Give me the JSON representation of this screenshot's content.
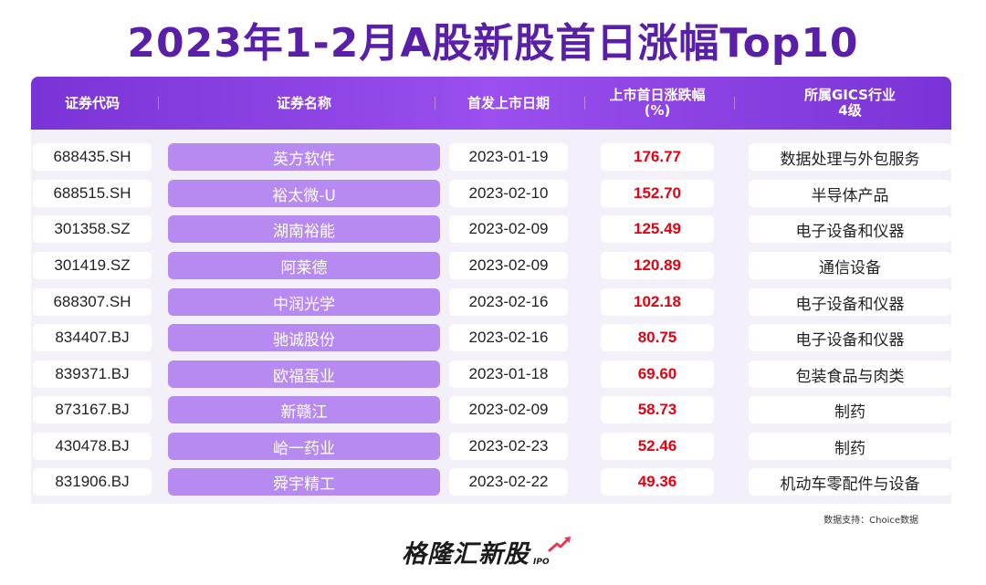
{
  "title": "2023年1-2月A股新股首日涨幅Top10",
  "header": {
    "code": "证券代码",
    "name": "证券名称",
    "date": "首发上市日期",
    "change_line1": "上市首日涨跌幅",
    "change_line2": "(%)",
    "industry_line1": "所属GICS行业",
    "industry_line2": "4级"
  },
  "rows": [
    {
      "code": "688435.SH",
      "name": "英方软件",
      "date": "2023-01-19",
      "change": "176.77",
      "industry": "数据处理与外包服务"
    },
    {
      "code": "688515.SH",
      "name": "裕太微-U",
      "date": "2023-02-10",
      "change": "152.70",
      "industry": "半导体产品"
    },
    {
      "code": "301358.SZ",
      "name": "湖南裕能",
      "date": "2023-02-09",
      "change": "125.49",
      "industry": "电子设备和仪器"
    },
    {
      "code": "301419.SZ",
      "name": "阿莱德",
      "date": "2023-02-09",
      "change": "120.89",
      "industry": "通信设备"
    },
    {
      "code": "688307.SH",
      "name": "中润光学",
      "date": "2023-02-16",
      "change": "102.18",
      "industry": "电子设备和仪器"
    },
    {
      "code": "834407.BJ",
      "name": "驰诚股份",
      "date": "2023-02-16",
      "change": "80.75",
      "industry": "电子设备和仪器"
    },
    {
      "code": "839371.BJ",
      "name": "欧福蛋业",
      "date": "2023-01-18",
      "change": "69.60",
      "industry": "包装食品与肉类"
    },
    {
      "code": "873167.BJ",
      "name": "新赣江",
      "date": "2023-02-09",
      "change": "58.73",
      "industry": "制药"
    },
    {
      "code": "430478.BJ",
      "name": "峆一药业",
      "date": "2023-02-23",
      "change": "52.46",
      "industry": "制药"
    },
    {
      "code": "831906.BJ",
      "name": "舜宇精工",
      "date": "2023-02-22",
      "change": "49.36",
      "industry": "机动车零配件与设备"
    }
  ],
  "source": "数据支持：Choice数据",
  "logo": {
    "text": "格隆汇新股",
    "sub": "IPO"
  },
  "colors": {
    "title": "#5a1fa8",
    "header": "#8a40e6",
    "name_cell": "#b78af2",
    "change_text": "#e60012",
    "body_bg": "#f4f0fa"
  }
}
